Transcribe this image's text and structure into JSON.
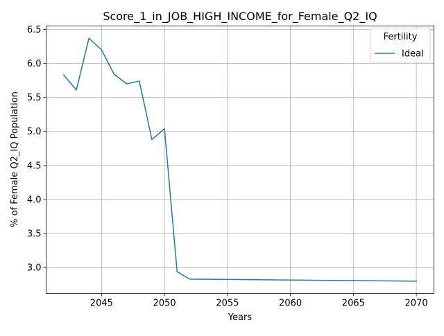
{
  "chart_data": {
    "type": "line",
    "title": "Score_1_in_JOB_HIGH_INCOME_for_Female_Q2_IQ",
    "xlabel": "Years",
    "ylabel": "% of Female Q2_IQ Population",
    "xlim": [
      2040.6,
      2071.4
    ],
    "ylim": [
      2.62,
      6.55
    ],
    "xticks": [
      2045,
      2050,
      2055,
      2060,
      2065,
      2070
    ],
    "xtick_labels": [
      "2045",
      "2050",
      "2055",
      "2060",
      "2065",
      "2070"
    ],
    "yticks": [
      3.0,
      3.5,
      4.0,
      4.5,
      5.0,
      5.5,
      6.0,
      6.5
    ],
    "ytick_labels": [
      "3.0",
      "3.5",
      "4.0",
      "4.5",
      "5.0",
      "5.5",
      "6.0",
      "6.5"
    ],
    "grid": true,
    "legend": {
      "title": "Fertility",
      "placement": "top-right"
    },
    "series": [
      {
        "name": "Ideal",
        "color": "#1f77b4",
        "x": [
          2042,
          2043,
          2044,
          2045,
          2046,
          2047,
          2048,
          2049,
          2050,
          2051,
          2052,
          2070
        ],
        "y": [
          5.83,
          5.61,
          6.37,
          6.2,
          5.84,
          5.7,
          5.74,
          4.88,
          5.04,
          2.94,
          2.83,
          2.8
        ]
      }
    ]
  }
}
